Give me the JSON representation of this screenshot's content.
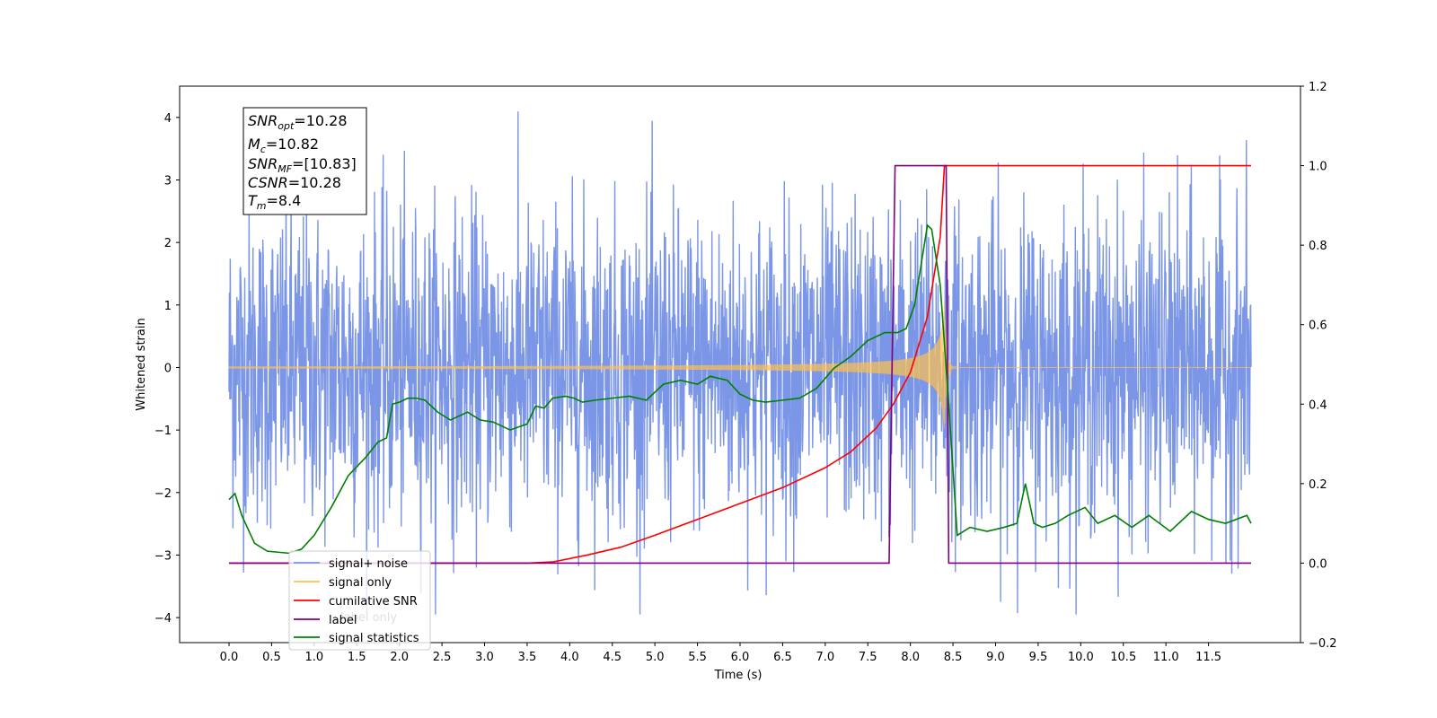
{
  "chart_data": {
    "type": "line",
    "xlabel": "Time (s)",
    "ylabel": "Whitened strain",
    "xlim": [
      -0.58,
      12.58
    ],
    "ylim": [
      -4.4,
      4.5
    ],
    "y2lim": [
      -0.2,
      1.2
    ],
    "x_ticks": [
      "0.0",
      "0.5",
      "1.0",
      "1.5",
      "2.0",
      "2.5",
      "3.0",
      "3.5",
      "4.0",
      "4.5",
      "5.0",
      "5.5",
      "6.0",
      "6.5",
      "7.0",
      "7.5",
      "8.0",
      "8.5",
      "9.0",
      "9.5",
      "10.0",
      "10.5",
      "11.0",
      "11.5"
    ],
    "y_ticks": [
      "4",
      "3",
      "2",
      "1",
      "0",
      "−1",
      "−2",
      "−3",
      "−4"
    ],
    "y2_ticks": [
      "1.2",
      "1.0",
      "0.8",
      "0.6",
      "0.4",
      "0.2",
      "0.0",
      "−0.2"
    ],
    "annotation": {
      "lines": [
        {
          "base": "SNR",
          "sub": "opt",
          "value": "=10.28"
        },
        {
          "base": "M",
          "sub": "c",
          "value": "=10.82"
        },
        {
          "base": "SNR",
          "sub": "MF",
          "value": "=[10.83]"
        },
        {
          "base": "CSNR",
          "sub": "",
          "value": "=10.28"
        },
        {
          "base": "T",
          "sub": "m",
          "value": "=8.4"
        }
      ]
    },
    "legend": {
      "placement": "lower-left",
      "entries": [
        {
          "label": "signal+ noise",
          "color": "#7b96e6"
        },
        {
          "label": "signal only",
          "color": "#ffc04d"
        },
        {
          "label": "cumilative SNR",
          "color": "#ff0000"
        },
        {
          "label": "label",
          "color": "#800080"
        },
        {
          "label": "signal statistics",
          "color": "#008000"
        }
      ],
      "obscured_text": "label only"
    },
    "series": [
      {
        "name": "signal+ noise",
        "axis": "left",
        "color": "#7b96e6",
        "style": "noise",
        "x_range": [
          0.0,
          12.0
        ],
        "envelope_typical": 2.3,
        "envelope_extreme": 4.1
      },
      {
        "name": "signal only",
        "axis": "left",
        "color": "#ffc04d",
        "style": "chirp",
        "x_range": [
          0.0,
          12.0
        ],
        "merger_time": 8.4,
        "peak_amplitude": 1.0
      },
      {
        "name": "cumilative SNR",
        "axis": "right",
        "color": "#ff0000",
        "x": [
          0.0,
          3.5,
          3.8,
          4.2,
          4.6,
          5.0,
          5.5,
          6.0,
          6.5,
          7.0,
          7.3,
          7.6,
          7.8,
          8.0,
          8.2,
          8.35,
          8.4,
          12.0
        ],
        "y": [
          0.0,
          0.0,
          0.003,
          0.02,
          0.04,
          0.07,
          0.11,
          0.15,
          0.19,
          0.24,
          0.28,
          0.34,
          0.4,
          0.48,
          0.62,
          0.82,
          1.0,
          1.0
        ]
      },
      {
        "name": "label",
        "axis": "right",
        "color": "#800080",
        "x": [
          0.0,
          7.75,
          7.82,
          8.42,
          8.45,
          12.0
        ],
        "y": [
          0.0,
          0.0,
          1.0,
          1.0,
          0.0,
          0.0
        ]
      },
      {
        "name": "signal statistics",
        "axis": "right",
        "color": "#008000",
        "x": [
          0.0,
          0.07,
          0.15,
          0.3,
          0.45,
          0.7,
          0.85,
          1.0,
          1.2,
          1.4,
          1.6,
          1.75,
          1.85,
          1.92,
          2.0,
          2.1,
          2.2,
          2.3,
          2.45,
          2.6,
          2.8,
          2.95,
          3.1,
          3.3,
          3.5,
          3.6,
          3.7,
          3.8,
          3.95,
          4.05,
          4.15,
          4.3,
          4.5,
          4.7,
          4.9,
          5.1,
          5.3,
          5.5,
          5.65,
          5.85,
          6.0,
          6.15,
          6.3,
          6.5,
          6.7,
          6.9,
          7.1,
          7.3,
          7.5,
          7.7,
          7.85,
          7.95,
          8.05,
          8.2,
          8.25,
          8.35,
          8.45,
          8.55,
          8.7,
          8.9,
          9.1,
          9.25,
          9.35,
          9.45,
          9.55,
          9.7,
          9.85,
          10.05,
          10.2,
          10.4,
          10.6,
          10.8,
          11.05,
          11.3,
          11.5,
          11.7,
          11.95,
          12.0
        ],
        "y": [
          0.16,
          0.175,
          0.12,
          0.05,
          0.03,
          0.025,
          0.035,
          0.07,
          0.14,
          0.22,
          0.265,
          0.305,
          0.315,
          0.4,
          0.405,
          0.415,
          0.415,
          0.41,
          0.38,
          0.36,
          0.38,
          0.36,
          0.355,
          0.335,
          0.35,
          0.395,
          0.39,
          0.415,
          0.42,
          0.415,
          0.405,
          0.41,
          0.415,
          0.42,
          0.41,
          0.45,
          0.46,
          0.45,
          0.47,
          0.46,
          0.425,
          0.41,
          0.405,
          0.41,
          0.415,
          0.44,
          0.49,
          0.52,
          0.56,
          0.58,
          0.58,
          0.59,
          0.65,
          0.85,
          0.84,
          0.7,
          0.4,
          0.07,
          0.09,
          0.08,
          0.09,
          0.1,
          0.2,
          0.1,
          0.09,
          0.1,
          0.12,
          0.14,
          0.1,
          0.12,
          0.09,
          0.12,
          0.08,
          0.13,
          0.11,
          0.1,
          0.12,
          0.1
        ]
      }
    ]
  }
}
